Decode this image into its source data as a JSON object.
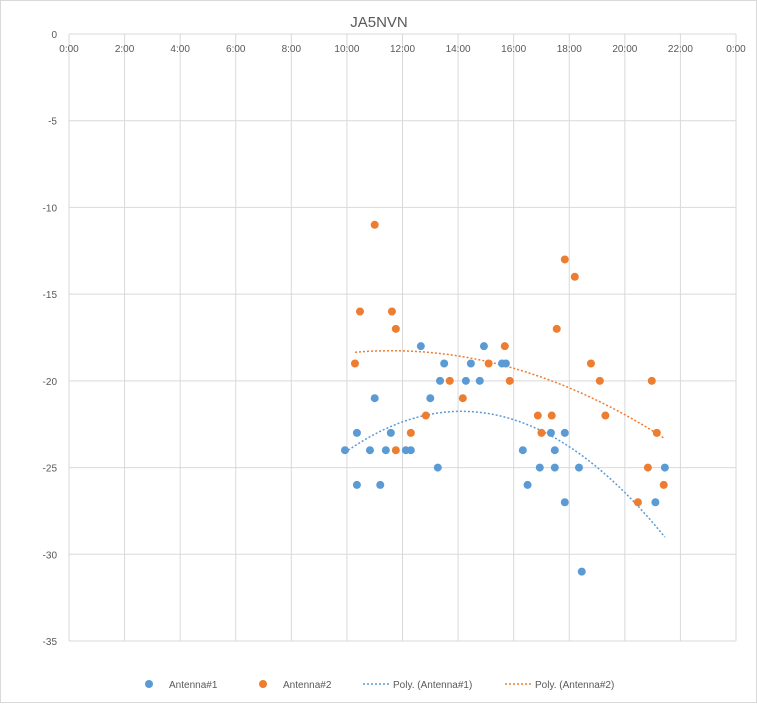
{
  "chart_data": {
    "type": "scatter",
    "title": "JA5NVN",
    "xlabel": "",
    "ylabel": "",
    "x_unit": "hours",
    "xlim": [
      0,
      24
    ],
    "ylim": [
      -35,
      0
    ],
    "x_ticks": [
      0,
      2,
      4,
      6,
      8,
      10,
      12,
      14,
      16,
      18,
      20,
      22,
      24
    ],
    "x_tick_labels": [
      "0:00",
      "2:00",
      "4:00",
      "6:00",
      "8:00",
      "10:00",
      "12:00",
      "14:00",
      "16:00",
      "18:00",
      "20:00",
      "22:00",
      "0:00"
    ],
    "y_ticks": [
      0,
      -5,
      -10,
      -15,
      -20,
      -25,
      -30,
      -35
    ],
    "y_tick_labels": [
      "0",
      "-5",
      "-10",
      "-15",
      "-20",
      "-25",
      "-30",
      "-35"
    ],
    "x_axis_position": "top",
    "grid": true,
    "legend_position": "bottom",
    "series": [
      {
        "name": "Antenna#1",
        "color": "#5b9bd5",
        "x": [
          9.93,
          10.36,
          10.36,
          10.83,
          11.0,
          11.2,
          11.4,
          11.58,
          12.12,
          12.3,
          12.66,
          13.0,
          13.27,
          13.35,
          13.5,
          14.28,
          14.46,
          14.78,
          14.93,
          15.58,
          15.72,
          16.33,
          16.5,
          16.94,
          17.34,
          17.48,
          17.48,
          17.84,
          17.84,
          18.35,
          18.45,
          21.1,
          21.44
        ],
        "y": [
          -24,
          -26,
          -23,
          -24,
          -21,
          -26,
          -24,
          -23,
          -24,
          -24,
          -18,
          -21,
          -25,
          -20,
          -19,
          -20,
          -19,
          -20,
          -18,
          -19,
          -19,
          -24,
          -26,
          -25,
          -23,
          -24,
          -25,
          -27,
          -23,
          -25,
          -31,
          -27,
          -25
        ]
      },
      {
        "name": "Antenna#2",
        "color": "#ed7d31",
        "x": [
          10.29,
          10.47,
          11.0,
          11.62,
          11.76,
          11.76,
          12.3,
          12.84,
          13.7,
          14.17,
          15.1,
          15.68,
          15.86,
          16.87,
          17.0,
          17.37,
          17.55,
          17.84,
          18.2,
          18.78,
          19.1,
          19.3,
          20.47,
          20.83,
          20.97,
          21.15,
          21.4
        ],
        "y": [
          -19,
          -16,
          -11,
          -16,
          -17,
          -24,
          -23,
          -22,
          -20,
          -21,
          -19,
          -18,
          -20,
          -22,
          -23,
          -22,
          -17,
          -13,
          -14,
          -19,
          -20,
          -22,
          -27,
          -25,
          -20,
          -23,
          -26
        ]
      }
    ],
    "trendlines": [
      {
        "name": "Poly. (Antenna#1)",
        "of": "Antenna#1",
        "order": 2,
        "color": "#5b9bd5"
      },
      {
        "name": "Poly. (Antenna#2)",
        "of": "Antenna#2",
        "order": 2,
        "color": "#ed7d31"
      }
    ]
  }
}
